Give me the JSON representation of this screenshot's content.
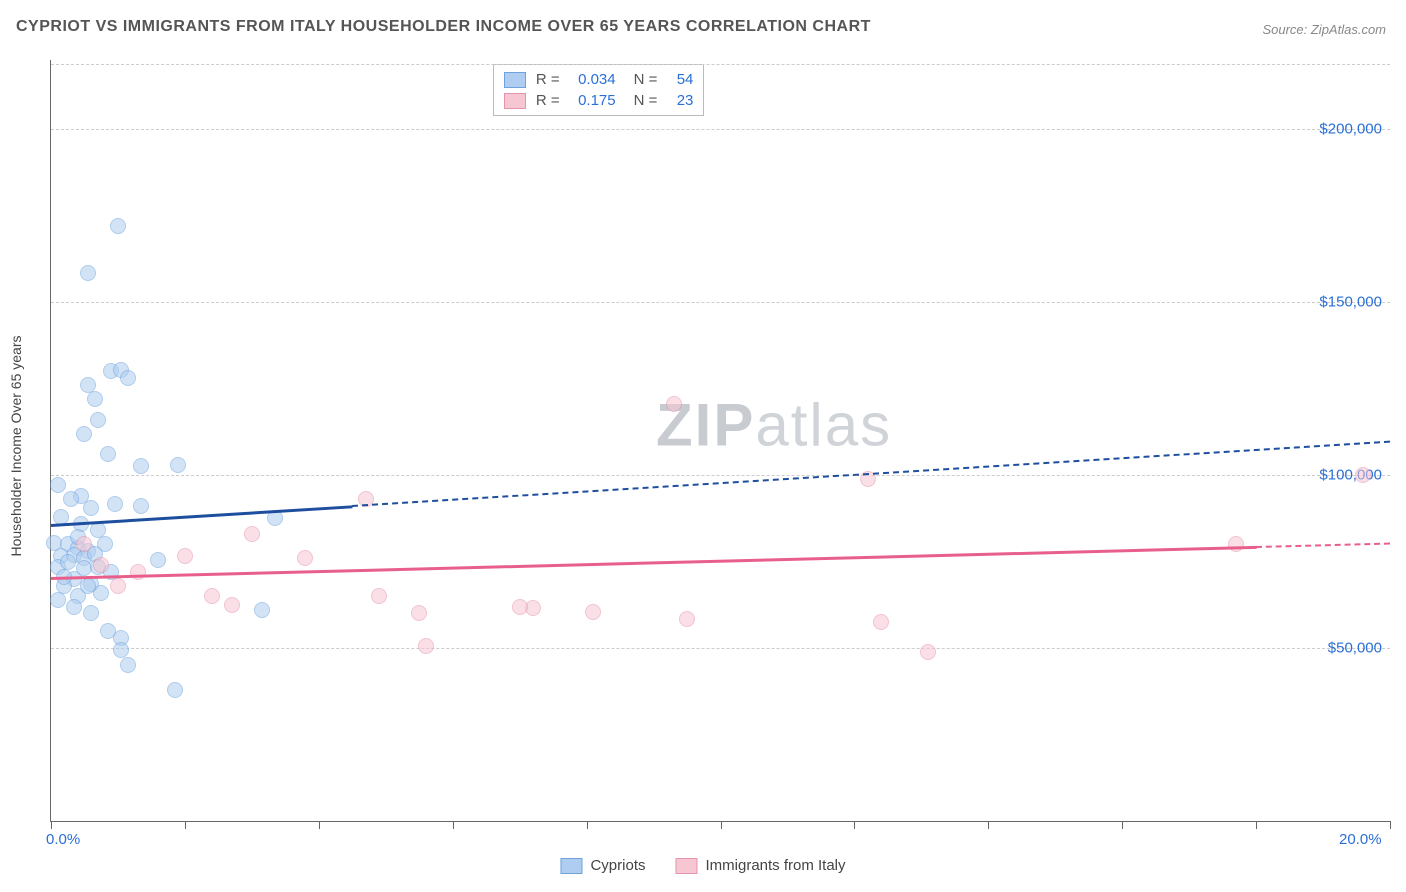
{
  "title": "CYPRIOT VS IMMIGRANTS FROM ITALY HOUSEHOLDER INCOME OVER 65 YEARS CORRELATION CHART",
  "source": "Source: ZipAtlas.com",
  "ylabel": "Householder Income Over 65 years",
  "watermark_a": "ZIP",
  "watermark_b": "atlas",
  "chart": {
    "type": "scatter",
    "xlim": [
      0,
      20
    ],
    "ylim": [
      0,
      220000
    ],
    "x_tick_positions": [
      0,
      2,
      4,
      6,
      8,
      10,
      12,
      14,
      16,
      18,
      20
    ],
    "x_tick_labels": {
      "0": "0.0%",
      "20": "20.0%"
    },
    "y_gridlines": [
      50000,
      100000,
      150000,
      200000
    ],
    "y_tick_labels": {
      "50000": "$50,000",
      "100000": "$100,000",
      "150000": "$150,000",
      "200000": "$200,000"
    },
    "background_color": "#ffffff",
    "grid_color": "#cccccc",
    "axis_color": "#666666",
    "tick_label_color": "#2a6fd6",
    "point_radius": 8,
    "point_opacity": 0.55
  },
  "series": [
    {
      "name": "Cypriots",
      "color_fill": "#aecdf0",
      "color_stroke": "#6fa3dd",
      "trend_color": "#1e4e9e",
      "R": "0.034",
      "N": "54",
      "trend": {
        "x1": 0,
        "y1": 86000,
        "x2": 20,
        "y2": 110000,
        "solid_until_x": 4.5
      },
      "points": [
        [
          1.0,
          172000
        ],
        [
          0.55,
          158500
        ],
        [
          0.9,
          130000
        ],
        [
          1.05,
          130500
        ],
        [
          1.15,
          128000
        ],
        [
          0.55,
          126000
        ],
        [
          0.65,
          122000
        ],
        [
          0.7,
          116000
        ],
        [
          0.5,
          112000
        ],
        [
          0.1,
          97000
        ],
        [
          0.45,
          94000
        ],
        [
          0.85,
          106000
        ],
        [
          1.35,
          102500
        ],
        [
          1.9,
          103000
        ],
        [
          0.3,
          93000
        ],
        [
          0.6,
          90500
        ],
        [
          0.95,
          91500
        ],
        [
          1.35,
          91000
        ],
        [
          0.15,
          88000
        ],
        [
          0.45,
          86000
        ],
        [
          0.7,
          84000
        ],
        [
          0.05,
          80500
        ],
        [
          0.25,
          80000
        ],
        [
          0.4,
          79000
        ],
        [
          0.55,
          78000
        ],
        [
          0.8,
          80000
        ],
        [
          0.15,
          76500
        ],
        [
          0.35,
          77000
        ],
        [
          0.5,
          76000
        ],
        [
          0.65,
          77300
        ],
        [
          0.1,
          73500
        ],
        [
          0.25,
          75000
        ],
        [
          0.5,
          73000
        ],
        [
          0.7,
          73500
        ],
        [
          3.35,
          87500
        ],
        [
          0.35,
          70000
        ],
        [
          0.2,
          68000
        ],
        [
          0.6,
          68500
        ],
        [
          0.9,
          72000
        ],
        [
          1.6,
          75500
        ],
        [
          0.4,
          65000
        ],
        [
          0.1,
          64000
        ],
        [
          0.75,
          66000
        ],
        [
          0.35,
          62000
        ],
        [
          3.15,
          61000
        ],
        [
          0.85,
          55000
        ],
        [
          1.05,
          53000
        ],
        [
          1.05,
          49500
        ],
        [
          1.15,
          45000
        ],
        [
          1.85,
          38000
        ],
        [
          0.6,
          60000
        ],
        [
          0.2,
          70500
        ],
        [
          0.4,
          82000
        ],
        [
          0.55,
          68000
        ]
      ]
    },
    {
      "name": "Immigrants from Italy",
      "color_fill": "#f6c6d3",
      "color_stroke": "#e693ad",
      "trend_color": "#e95f8c",
      "R": "0.175",
      "N": "23",
      "trend": {
        "x1": 0,
        "y1": 70500,
        "x2": 20,
        "y2": 80500,
        "solid_until_x": 18.0
      },
      "points": [
        [
          9.3,
          120500
        ],
        [
          12.2,
          99000
        ],
        [
          19.6,
          100000
        ],
        [
          4.7,
          93000
        ],
        [
          17.7,
          80000
        ],
        [
          3.0,
          83000
        ],
        [
          2.0,
          76500
        ],
        [
          3.8,
          76000
        ],
        [
          1.3,
          72000
        ],
        [
          0.75,
          74000
        ],
        [
          2.4,
          65000
        ],
        [
          4.9,
          65000
        ],
        [
          5.5,
          60000
        ],
        [
          7.2,
          61500
        ],
        [
          8.1,
          60500
        ],
        [
          9.5,
          58500
        ],
        [
          12.4,
          57500
        ],
        [
          5.6,
          50500
        ],
        [
          13.1,
          49000
        ],
        [
          2.7,
          62500
        ],
        [
          1.0,
          68000
        ],
        [
          0.5,
          80000
        ],
        [
          7.0,
          62000
        ]
      ]
    }
  ],
  "stats_legend_labels": {
    "R": "R =",
    "N": "N ="
  },
  "bottom_legend": [
    "Cypriots",
    "Immigrants from Italy"
  ]
}
